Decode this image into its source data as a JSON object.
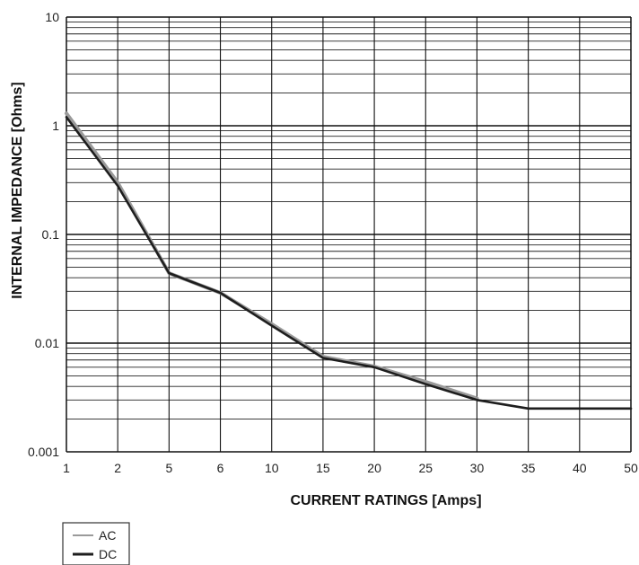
{
  "chart_data": {
    "type": "line",
    "title": "",
    "xlabel": "CURRENT RATINGS [Amps]",
    "ylabel": "INTERNAL IMPEDANCE [Ohms]",
    "x_scale": "categorical",
    "y_scale": "log",
    "ylim": [
      0.001,
      10
    ],
    "categories": [
      "1",
      "2",
      "5",
      "6",
      "10",
      "15",
      "20",
      "25",
      "30",
      "35",
      "40",
      "50"
    ],
    "y_tick_labels": [
      "10",
      "1",
      "0.1",
      "0.01",
      "0.001"
    ],
    "grid": true,
    "legend_position": "bottom-left",
    "series": [
      {
        "name": "AC",
        "color": "#9a9a9a",
        "values": [
          1.3,
          0.3,
          0.044,
          0.029,
          0.015,
          0.0075,
          0.0061,
          0.0044,
          0.0031,
          null,
          null,
          null
        ]
      },
      {
        "name": "DC",
        "color": "#1e1e1e",
        "values": [
          1.2,
          0.28,
          0.044,
          0.029,
          0.0145,
          0.0073,
          0.006,
          0.0042,
          0.003,
          0.0025,
          0.0025,
          0.0025
        ]
      }
    ]
  }
}
